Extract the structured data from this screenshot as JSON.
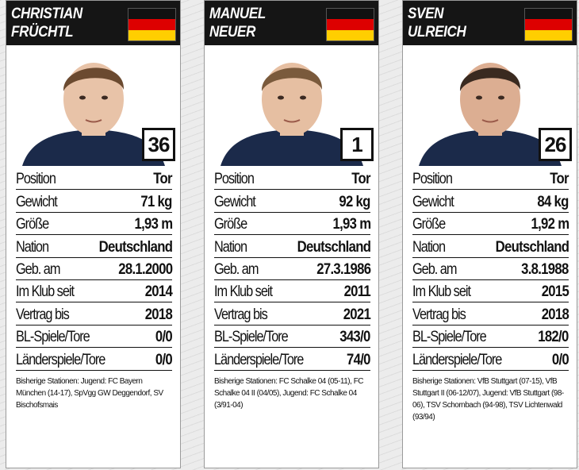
{
  "flag_colors": [
    "#111111",
    "#dd0000",
    "#ffce00"
  ],
  "labels": {
    "position": "Position",
    "gewicht": "Gewicht",
    "groesse": "Größe",
    "nation": "Nation",
    "geb": "Geb. am",
    "klub": "Im Klub seit",
    "vertrag": "Vertrag bis",
    "bl": "BL-Spiele/Tore",
    "laender": "Länderspiele/Tore"
  },
  "players": [
    {
      "first": "CHRISTIAN",
      "last": "FRÜCHTL",
      "number": "36",
      "position": "Tor",
      "gewicht": "71 kg",
      "groesse": "1,93 m",
      "nation": "Deutschland",
      "geb": "28.1.2000",
      "klub": "2014",
      "vertrag": "2018",
      "bl": "0/0",
      "laender": "0/0",
      "career": "Bisherige Stationen: Jugend: FC Bayern München (14-17), SpVgg GW Deggendorf, SV Bischofsmais",
      "hair": "#6b4a30",
      "skin": "#e8c3a8"
    },
    {
      "first": "MANUEL",
      "last": "NEUER",
      "number": "1",
      "position": "Tor",
      "gewicht": "92 kg",
      "groesse": "1,93 m",
      "nation": "Deutschland",
      "geb": "27.3.1986",
      "klub": "2011",
      "vertrag": "2021",
      "bl": "343/0",
      "laender": "74/0",
      "career": "Bisherige Stationen: FC Schalke 04 (05-11), FC Schalke 04 II (04/05), Jugend: FC Schalke 04 (3/91-04)",
      "hair": "#7a5a3c",
      "skin": "#e6bfa2"
    },
    {
      "first": "SVEN",
      "last": "ULREICH",
      "number": "26",
      "position": "Tor",
      "gewicht": "84 kg",
      "groesse": "1,92 m",
      "nation": "Deutschland",
      "geb": "3.8.1988",
      "klub": "2015",
      "vertrag": "2018",
      "bl": "182/0",
      "laender": "0/0",
      "career": "Bisherige Stationen: VfB Stuttgart (07-15), VfB Stuttgart II (06-12/07), Jugend: VfB Stuttgart (98-06), TSV Schornbach (94-98), TSV Lichtenwald (93/94)",
      "hair": "#3a2a20",
      "skin": "#dcae92"
    }
  ]
}
